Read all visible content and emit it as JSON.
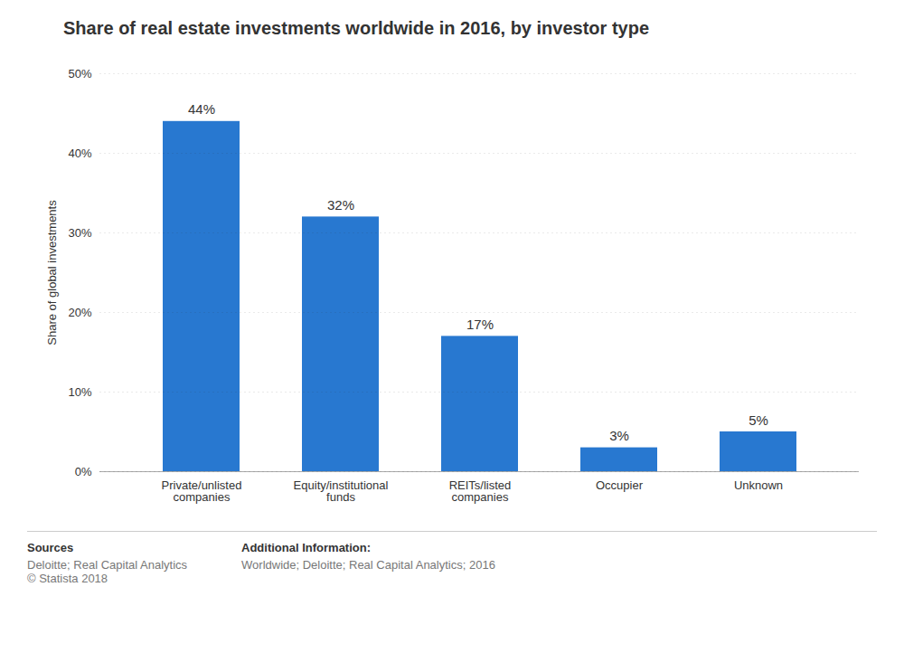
{
  "chart_data": {
    "type": "bar",
    "title": "Share of real estate investments worldwide in 2016, by investor type",
    "categories": [
      "Private/unlisted\ncompanies",
      "Equity/institutional\nfunds",
      "REITs/listed\ncompanies",
      "Occupier",
      "Unknown"
    ],
    "values": [
      44,
      32,
      17,
      3,
      5
    ],
    "value_labels": [
      "44%",
      "32%",
      "17%",
      "3%",
      "5%"
    ],
    "data_labels": true,
    "color": "#2878d0",
    "ylabel": "Share of global investments",
    "ylim": [
      0,
      50
    ],
    "yticks": [
      {
        "value": 0,
        "label": "0%"
      },
      {
        "value": 10,
        "label": "10%"
      },
      {
        "value": 20,
        "label": "20%"
      },
      {
        "value": 30,
        "label": "30%"
      },
      {
        "value": 40,
        "label": "40%"
      },
      {
        "value": 50,
        "label": "50%"
      }
    ],
    "grid": true,
    "annotations": [
      "Sources",
      "Deloitte; Real Capital Analytics\n© Statista 2018",
      "Additional Information:",
      "Worldwide; Deloitte; Real Capital Analytics; 2016"
    ]
  }
}
